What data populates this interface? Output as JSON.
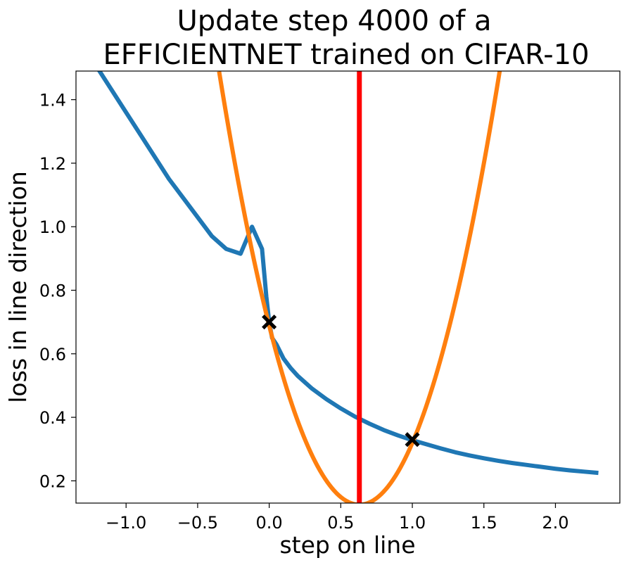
{
  "chart_data": {
    "type": "line",
    "title_line1": "Update step 4000 of a",
    "title_line2": "EFFICIENTNET trained on CIFAR-10",
    "xlabel": "step on line",
    "ylabel": "loss in line direction",
    "xlim": [
      -1.35,
      2.45
    ],
    "ylim": [
      0.13,
      1.49
    ],
    "xticks": [
      -1.0,
      -0.5,
      0.0,
      0.5,
      1.0,
      1.5,
      2.0
    ],
    "xtick_labels": [
      "−1.0",
      "−0.5",
      "0.0",
      "0.5",
      "1.0",
      "1.5",
      "2.0"
    ],
    "yticks": [
      0.2,
      0.4,
      0.6,
      0.8,
      1.0,
      1.2,
      1.4
    ],
    "ytick_labels": [
      "0.2",
      "0.4",
      "0.6",
      "0.8",
      "1.0",
      "1.2",
      "1.4"
    ],
    "grid": false,
    "legend": "none",
    "series": [
      {
        "color": "#1f77b4",
        "kind": "line",
        "x": [
          -1.2,
          -1.1,
          -1.0,
          -0.9,
          -0.8,
          -0.7,
          -0.6,
          -0.5,
          -0.4,
          -0.3,
          -0.2,
          -0.12,
          -0.05,
          -0.02,
          0.0,
          0.02,
          0.05,
          0.1,
          0.15,
          0.2,
          0.3,
          0.4,
          0.5,
          0.6,
          0.7,
          0.8,
          0.9,
          1.0,
          1.1,
          1.2,
          1.3,
          1.4,
          1.5,
          1.6,
          1.7,
          1.8,
          1.9,
          2.0,
          2.1,
          2.2,
          2.3
        ],
        "y": [
          1.5,
          1.43,
          1.36,
          1.29,
          1.22,
          1.15,
          1.09,
          1.03,
          0.97,
          0.93,
          0.915,
          1.0,
          0.93,
          0.78,
          0.7,
          0.65,
          0.63,
          0.585,
          0.555,
          0.53,
          0.49,
          0.457,
          0.428,
          0.402,
          0.38,
          0.36,
          0.343,
          0.328,
          0.315,
          0.302,
          0.29,
          0.28,
          0.271,
          0.263,
          0.256,
          0.25,
          0.244,
          0.238,
          0.233,
          0.229,
          0.225
        ]
      },
      {
        "color": "#ff7f0e",
        "kind": "parabola",
        "vertex_x": 0.63,
        "vertex_y": 0.125,
        "curvature": 1.42,
        "x_range": [
          -0.35,
          1.62
        ]
      },
      {
        "color": "#ff0000",
        "kind": "vertical-line",
        "x": 0.63
      },
      {
        "color": "#000000",
        "kind": "markers",
        "marker": "x",
        "x": [
          0.0,
          1.0
        ],
        "y": [
          0.7,
          0.33
        ]
      }
    ]
  }
}
